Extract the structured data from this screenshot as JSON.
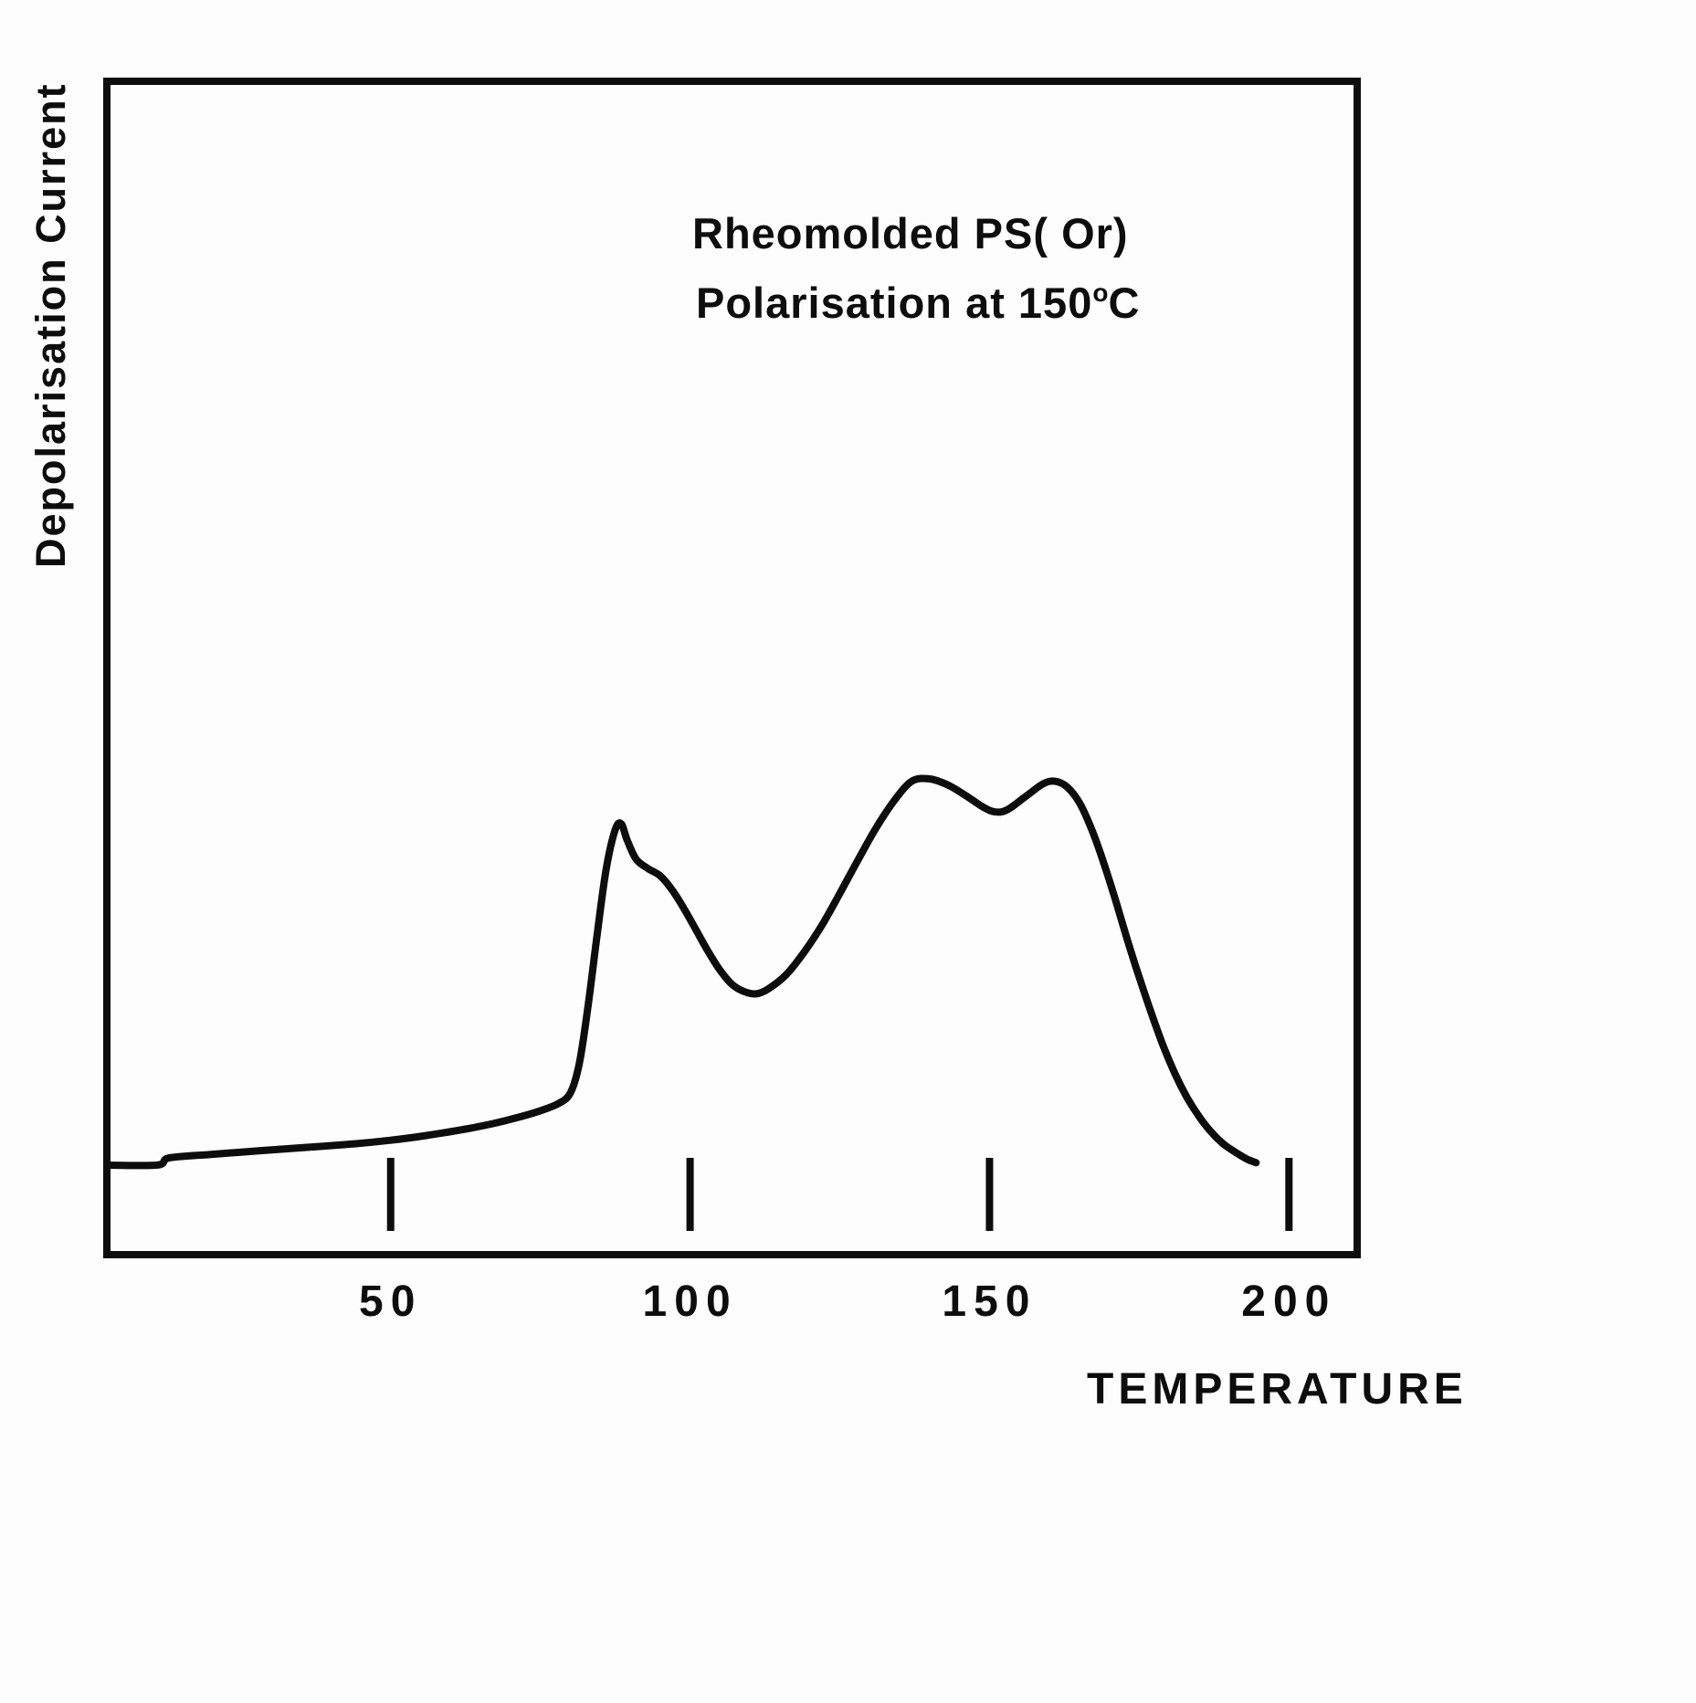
{
  "page": {
    "background": "#fdfdfd",
    "ink": "#0d0d0d"
  },
  "y_axis": {
    "label": "Depolarisation Current"
  },
  "x_axis": {
    "label": "TEMPERATURE",
    "tick_labels": [
      "50",
      "100",
      "150",
      "200"
    ]
  },
  "annotation": {
    "line1": "Rheomolded PS( Or)",
    "line2_prefix": "Polarisation at 150",
    "line2_sup": "o",
    "line2_suffix": "C"
  },
  "chart_data": {
    "type": "line",
    "title": "",
    "xlabel": "TEMPERATURE",
    "ylabel": "Depolarisation Current",
    "annotations": [
      "Rheomolded PS( Or)",
      "Polarisation at 150 °C"
    ],
    "xlim": [
      2,
      212
    ],
    "ylim": [
      0,
      100
    ],
    "x_ticks": [
      50,
      100,
      150,
      200
    ],
    "y_ticks": [],
    "grid": false,
    "legend": "none",
    "y_units": "arbitrary units (y axis unlabeled)",
    "peaks": [
      {
        "temperature": 88,
        "current": 36.8
      },
      {
        "temperature": 138,
        "current": 40.6
      },
      {
        "temperature": 160,
        "current": 40.4
      }
    ],
    "valley": {
      "temperature": 111,
      "current": 22.4
    },
    "series": [
      {
        "name": "Depolarisation current vs temperature",
        "points": [
          [
            2,
            7.9
          ],
          [
            11,
            7.9
          ],
          [
            13,
            8.5
          ],
          [
            20,
            8.8
          ],
          [
            28,
            9.1
          ],
          [
            36,
            9.4
          ],
          [
            44,
            9.7
          ],
          [
            50,
            10.0
          ],
          [
            56,
            10.4
          ],
          [
            62,
            10.9
          ],
          [
            67,
            11.4
          ],
          [
            71,
            11.9
          ],
          [
            75,
            12.5
          ],
          [
            78,
            13.1
          ],
          [
            80,
            14.0
          ],
          [
            81.5,
            16.5
          ],
          [
            83,
            21.5
          ],
          [
            84.5,
            27.5
          ],
          [
            86,
            33.0
          ],
          [
            87.5,
            36.3
          ],
          [
            88.5,
            36.8
          ],
          [
            89.5,
            35.4
          ],
          [
            91,
            33.8
          ],
          [
            93,
            33.0
          ],
          [
            95,
            32.4
          ],
          [
            97,
            31.2
          ],
          [
            99,
            29.6
          ],
          [
            101,
            27.8
          ],
          [
            103,
            26.0
          ],
          [
            105,
            24.4
          ],
          [
            107,
            23.2
          ],
          [
            109,
            22.6
          ],
          [
            111,
            22.4
          ],
          [
            113,
            22.8
          ],
          [
            116,
            24.0
          ],
          [
            119,
            25.9
          ],
          [
            122,
            28.2
          ],
          [
            125,
            30.9
          ],
          [
            128,
            33.7
          ],
          [
            131,
            36.4
          ],
          [
            134,
            38.7
          ],
          [
            137,
            40.4
          ],
          [
            140,
            40.6
          ],
          [
            143,
            40.1
          ],
          [
            146,
            39.2
          ],
          [
            149,
            38.2
          ],
          [
            151,
            37.8
          ],
          [
            153,
            38.0
          ],
          [
            156,
            39.1
          ],
          [
            159,
            40.2
          ],
          [
            161,
            40.4
          ],
          [
            163,
            39.9
          ],
          [
            165,
            38.6
          ],
          [
            167,
            36.4
          ],
          [
            169,
            33.6
          ],
          [
            171,
            30.4
          ],
          [
            173,
            27.0
          ],
          [
            175,
            23.8
          ],
          [
            177,
            20.8
          ],
          [
            179,
            18.0
          ],
          [
            181,
            15.6
          ],
          [
            183,
            13.6
          ],
          [
            185,
            12.0
          ],
          [
            187,
            10.7
          ],
          [
            189,
            9.7
          ],
          [
            191,
            9.0
          ],
          [
            193,
            8.4
          ],
          [
            194.5,
            8.1
          ]
        ]
      }
    ]
  }
}
